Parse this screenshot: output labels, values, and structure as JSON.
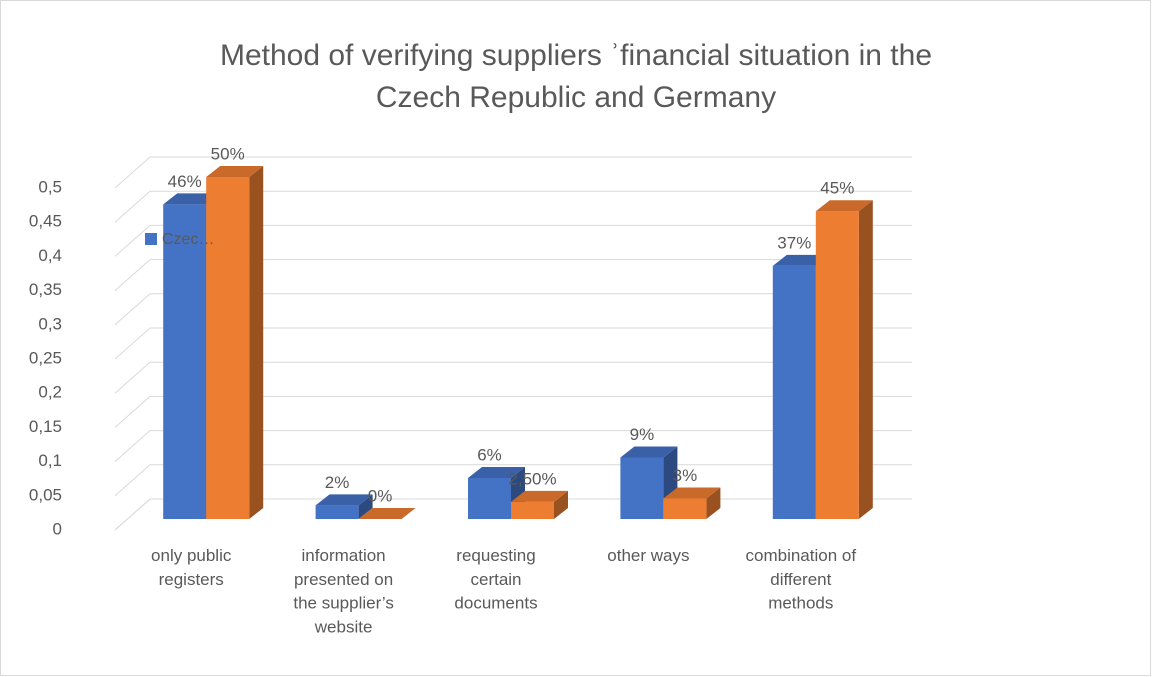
{
  "chart_data": {
    "type": "bar3d",
    "title": "Method of verifying suppliers ʾfinancial situation in the Czech Republic and Germany",
    "categories": [
      "only public registers",
      "information presented on the supplier’s website",
      "requesting certain documents",
      "other ways",
      "combination of different methods"
    ],
    "series": [
      {
        "name": "Czec…",
        "color": "#4472c4",
        "values": [
          0.46,
          0.02,
          0.06,
          0.09,
          0.37
        ],
        "value_labels": [
          "46%",
          "2%",
          "6%",
          "9%",
          "37%"
        ]
      },
      {
        "color": "#ed7d31",
        "values": [
          0.5,
          0,
          0.025,
          0.03,
          0.45
        ],
        "value_labels": [
          "50%",
          "0%",
          "2,50%",
          "3%",
          "45%"
        ]
      }
    ],
    "ylim": [
      0,
      0.5
    ],
    "yticks": [
      0,
      {
        "value": 0.05,
        "label": "0,05"
      },
      {
        "value": 0.1,
        "label": "0,1"
      },
      {
        "value": 0.15,
        "label": "0,15"
      },
      {
        "value": 0.2,
        "label": "0,2"
      },
      {
        "value": 0.25,
        "label": "0,25"
      },
      {
        "value": 0.3,
        "label": "0,3"
      },
      {
        "value": 0.35,
        "label": "0,35"
      },
      {
        "value": 0.4,
        "label": "0,4"
      },
      {
        "value": 0.45,
        "label": "0,45"
      },
      {
        "value": 0.5,
        "label": "0,5"
      }
    ],
    "grid": true
  }
}
